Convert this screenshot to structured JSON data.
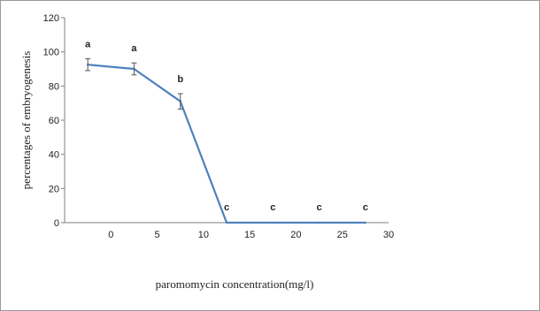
{
  "chart_data": {
    "type": "line",
    "title": "",
    "xlabel": "paromomycin concentration(mg/l)",
    "ylabel": "percentages of embryogenesis",
    "xlim": [
      -5,
      30
    ],
    "ylim": [
      0,
      120
    ],
    "x_ticks": [
      0,
      5,
      10,
      15,
      20,
      25,
      30
    ],
    "y_ticks": [
      0,
      20,
      40,
      60,
      80,
      100,
      120
    ],
    "grid": false,
    "legend": "none",
    "series": [
      {
        "color": "#4f81bd",
        "x": [
          -2.5,
          2.5,
          7.5,
          12.5,
          17.5,
          22.5,
          27.5
        ],
        "y": [
          92.5,
          90,
          71,
          0,
          0,
          0,
          0
        ],
        "error": [
          3.5,
          3.5,
          4.5,
          0,
          0,
          0,
          0
        ],
        "letters": [
          "a",
          "a",
          "b",
          "c",
          "c",
          "c",
          "c"
        ]
      }
    ]
  }
}
